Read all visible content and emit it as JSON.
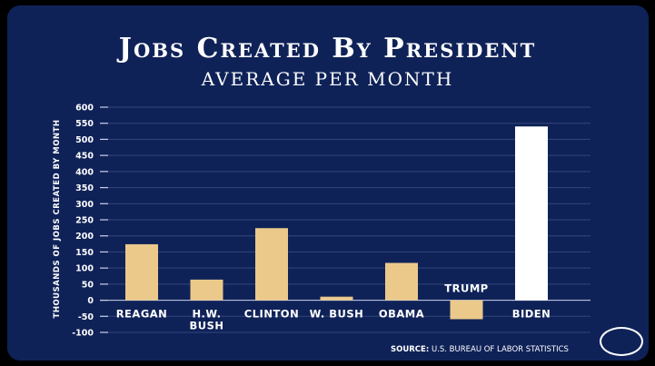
{
  "header": {
    "title": "Jobs Created By President",
    "subtitle": "AVERAGE PER MONTH"
  },
  "footer": {
    "source_prefix": "SOURCE:",
    "source_text": "U.S. BUREAU OF LABOR STATISTICS"
  },
  "chart_data": {
    "type": "bar",
    "title": "Jobs Created By President",
    "subtitle": "AVERAGE PER MONTH",
    "xlabel": "",
    "ylabel": "THOUSANDS OF JOBS CREATED BY MONTH",
    "categories": [
      "REAGAN",
      "H.W. BUSH",
      "CLINTON",
      "W. BUSH",
      "OBAMA",
      "TRUMP",
      "BIDEN"
    ],
    "values": [
      174,
      64,
      224,
      11,
      116,
      -59,
      540
    ],
    "highlight": "BIDEN",
    "ylim": [
      -100,
      600
    ],
    "yticks": [
      600,
      550,
      500,
      450,
      400,
      350,
      300,
      250,
      200,
      150,
      100,
      50,
      0,
      -50,
      -100
    ],
    "grid": true,
    "colors": {
      "bar": "#ebc98a",
      "highlight": "#ffffff",
      "background": "#0f2258"
    },
    "source": "SOURCE: U.S. BUREAU OF LABOR STATISTICS"
  }
}
